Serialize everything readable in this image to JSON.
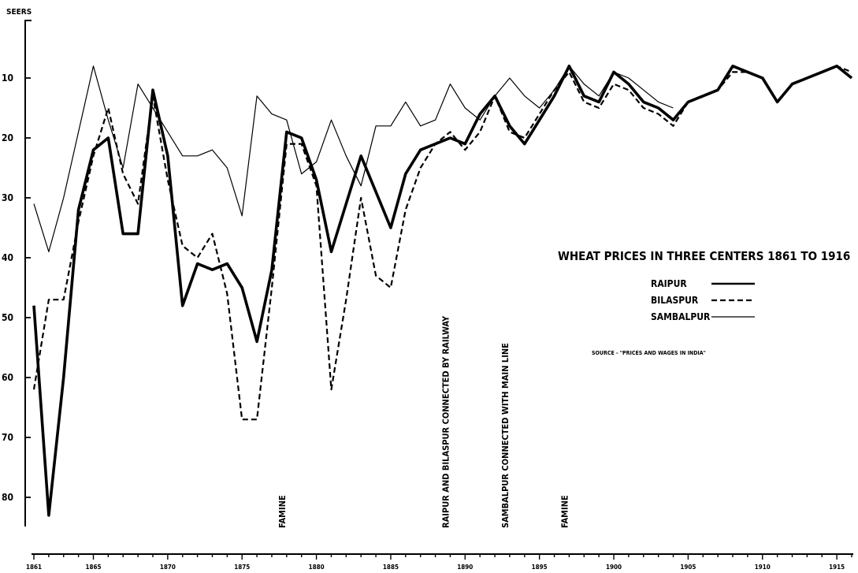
{
  "chart_data": {
    "type": "line",
    "title": "WHEAT PRICES IN THREE CENTERS 1861 TO 1916",
    "ylabel": "SEERS",
    "xlabel": "",
    "ylim": [
      5,
      87
    ],
    "y_inverted": true,
    "xlim": [
      1861,
      1916
    ],
    "x_ticks": [
      1861,
      1865,
      1870,
      1875,
      1880,
      1885,
      1890,
      1895,
      1900,
      1905,
      1910,
      1915
    ],
    "x_tick_labels": [
      "1861",
      "1865",
      "1870",
      "1875",
      "1880",
      "1885",
      "1890",
      "1895",
      "1900",
      "1905",
      "1910",
      "1915"
    ],
    "y_ticks": [
      10,
      20,
      30,
      40,
      50,
      60,
      70,
      80
    ],
    "y_tick_labels": [
      "10",
      "20",
      "30",
      "40",
      "50",
      "60",
      "70",
      "80"
    ],
    "grid": false,
    "legend_position": "right",
    "source_note": "SOURCE - \"PRICES AND WAGES IN INDIA\"",
    "annotations": [
      {
        "year": 1878,
        "text": "FAMINE"
      },
      {
        "year": 1889,
        "text": "RAIPUR AND BILASPUR CONNECTED BY RAILWAY"
      },
      {
        "year": 1893,
        "text": "SAMBALPUR CONNECTED WITH MAIN LINE"
      },
      {
        "year": 1897,
        "text": "FAMINE"
      }
    ],
    "series": [
      {
        "name": "RAIPUR",
        "style": "thick",
        "x": [
          1861,
          1862,
          1863,
          1864,
          1865,
          1866,
          1867,
          1868,
          1869,
          1870,
          1871,
          1872,
          1873,
          1874,
          1875,
          1876,
          1877,
          1878,
          1879,
          1880,
          1881,
          1882,
          1883,
          1884,
          1885,
          1886,
          1887,
          1888,
          1889,
          1890,
          1891,
          1892,
          1893,
          1894,
          1895,
          1896,
          1897,
          1898,
          1899,
          1900,
          1901,
          1902,
          1903,
          1904,
          1905,
          1906,
          1907,
          1908,
          1909,
          1910,
          1911,
          1912,
          1913,
          1914,
          1915,
          1916
        ],
        "y": [
          48,
          83,
          60,
          32,
          22,
          20,
          36,
          36,
          12,
          23,
          48,
          41,
          42,
          41,
          45,
          54,
          42,
          19,
          20,
          27,
          39,
          31,
          23,
          29,
          35,
          26,
          22,
          21,
          20,
          21,
          16,
          13,
          18,
          21,
          17,
          13,
          8,
          13,
          14,
          9,
          11,
          14,
          15,
          17,
          14,
          13,
          12,
          8,
          9,
          10,
          14,
          11,
          10,
          9,
          8,
          10
        ]
      },
      {
        "name": "BILASPUR",
        "style": "dashed",
        "x": [
          1861,
          1862,
          1863,
          1864,
          1865,
          1866,
          1867,
          1868,
          1869,
          1870,
          1871,
          1872,
          1873,
          1874,
          1875,
          1876,
          1877,
          1878,
          1879,
          1880,
          1881,
          1882,
          1883,
          1884,
          1885,
          1886,
          1887,
          1888,
          1889,
          1890,
          1891,
          1892,
          1893,
          1894,
          1895,
          1896,
          1897,
          1898,
          1899,
          1900,
          1901,
          1902,
          1903,
          1904,
          1905,
          1906,
          1907,
          1908,
          1909,
          1910,
          1911,
          1912,
          1913,
          1914,
          1915,
          1916
        ],
        "y": [
          62,
          47,
          47,
          34,
          23,
          15,
          26,
          31,
          13,
          27,
          38,
          40,
          36,
          46,
          67,
          67,
          45,
          21,
          21,
          28,
          62,
          47,
          30,
          43,
          45,
          32,
          25,
          21,
          19,
          22,
          19,
          13,
          19,
          20,
          16,
          12,
          9,
          14,
          15,
          11,
          12,
          15,
          16,
          18,
          14,
          13,
          12,
          9,
          9,
          10,
          14,
          11,
          10,
          9,
          8,
          9
        ]
      },
      {
        "name": "SAMBALPUR",
        "style": "thin",
        "x": [
          1861,
          1862,
          1863,
          1864,
          1865,
          1866,
          1867,
          1868,
          1869,
          1870,
          1871,
          1872,
          1873,
          1874,
          1875,
          1876,
          1877,
          1878,
          1879,
          1880,
          1881,
          1882,
          1883,
          1884,
          1885,
          1886,
          1887,
          1888,
          1889,
          1890,
          1891,
          1892,
          1893,
          1894,
          1895,
          1896,
          1897,
          1898,
          1899,
          1900,
          1901,
          1902,
          1903,
          1904
        ],
        "y": [
          31,
          39,
          30,
          19,
          8,
          17,
          25,
          11,
          15,
          19,
          23,
          23,
          22,
          25,
          33,
          13,
          16,
          17,
          26,
          24,
          17,
          23,
          28,
          18,
          18,
          14,
          18,
          17,
          11,
          15,
          17,
          13,
          10,
          13,
          15,
          12,
          8,
          11,
          13,
          9,
          10,
          12,
          14,
          15
        ]
      }
    ]
  }
}
